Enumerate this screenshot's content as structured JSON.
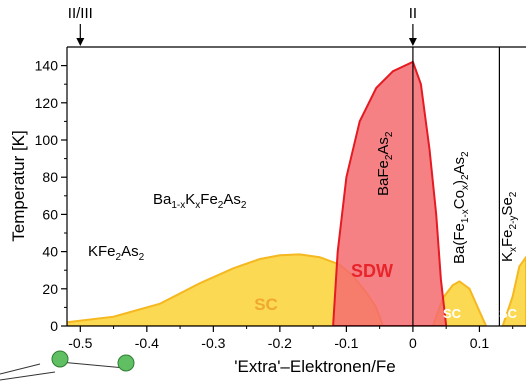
{
  "chart_data": {
    "type": "area",
    "xlabel": "'Extra'–Elektronen/Fe",
    "ylabel": "Temperatur [K]",
    "xlim": [
      -0.52,
      0.17
    ],
    "ylim": [
      0,
      150
    ],
    "xticks": [
      -0.5,
      -0.4,
      -0.3,
      -0.2,
      -0.1,
      0,
      0.1
    ],
    "xtick_labels": [
      "-0.5",
      "-0.4",
      "-0.3",
      "-0.2",
      "-0.1",
      "0",
      "0.1"
    ],
    "yticks": [
      0,
      20,
      40,
      60,
      80,
      100,
      120,
      140
    ],
    "ytick_labels": [
      "0",
      "20",
      "40",
      "60",
      "80",
      "100",
      "120",
      "140"
    ],
    "grid": false,
    "regions": [
      {
        "label": "SC",
        "color": "#fcd53f",
        "points": [
          [
            -0.52,
            2
          ],
          [
            -0.45,
            5
          ],
          [
            -0.38,
            12
          ],
          [
            -0.32,
            23
          ],
          [
            -0.27,
            31
          ],
          [
            -0.23,
            36
          ],
          [
            -0.2,
            38
          ],
          [
            -0.17,
            38.5
          ],
          [
            -0.14,
            37
          ],
          [
            -0.11,
            33
          ],
          [
            -0.09,
            27
          ],
          [
            -0.07,
            18
          ],
          [
            -0.055,
            10
          ],
          [
            -0.045,
            0
          ]
        ]
      },
      {
        "label": "SDW",
        "color": "#f56b70",
        "points": [
          [
            -0.12,
            0
          ],
          [
            -0.113,
            40
          ],
          [
            -0.1,
            80
          ],
          [
            -0.08,
            110
          ],
          [
            -0.055,
            128
          ],
          [
            -0.03,
            137
          ],
          [
            0,
            142
          ],
          [
            0.012,
            130
          ],
          [
            0.025,
            95
          ],
          [
            0.035,
            60
          ],
          [
            0.042,
            25
          ],
          [
            0.05,
            0
          ]
        ]
      },
      {
        "label": "SC",
        "color": "#fcd53f",
        "points": [
          [
            0.03,
            0
          ],
          [
            0.045,
            15
          ],
          [
            0.06,
            22
          ],
          [
            0.07,
            24
          ],
          [
            0.085,
            20
          ],
          [
            0.1,
            8
          ],
          [
            0.11,
            0
          ]
        ]
      },
      {
        "label": "SC",
        "color": "#fcd53f",
        "points": [
          [
            0.135,
            0
          ],
          [
            0.15,
            16
          ],
          [
            0.16,
            32
          ],
          [
            0.17,
            37
          ]
        ]
      }
    ],
    "vlines": [
      0,
      0.13
    ],
    "top_markers": [
      {
        "label": "II/III",
        "x": -0.5
      },
      {
        "label": "II",
        "x": 0
      }
    ],
    "annotations": [
      {
        "base": "KFe",
        "sub1": "2",
        "tail": "As",
        "sub2": "2"
      },
      {
        "text": "Ba1-xKxFe2As2"
      },
      {
        "text": "BaFe2As2"
      },
      {
        "text": "Ba(Fe1-xCox)2As2"
      },
      {
        "text": "KxFe2-ySe2"
      }
    ]
  }
}
